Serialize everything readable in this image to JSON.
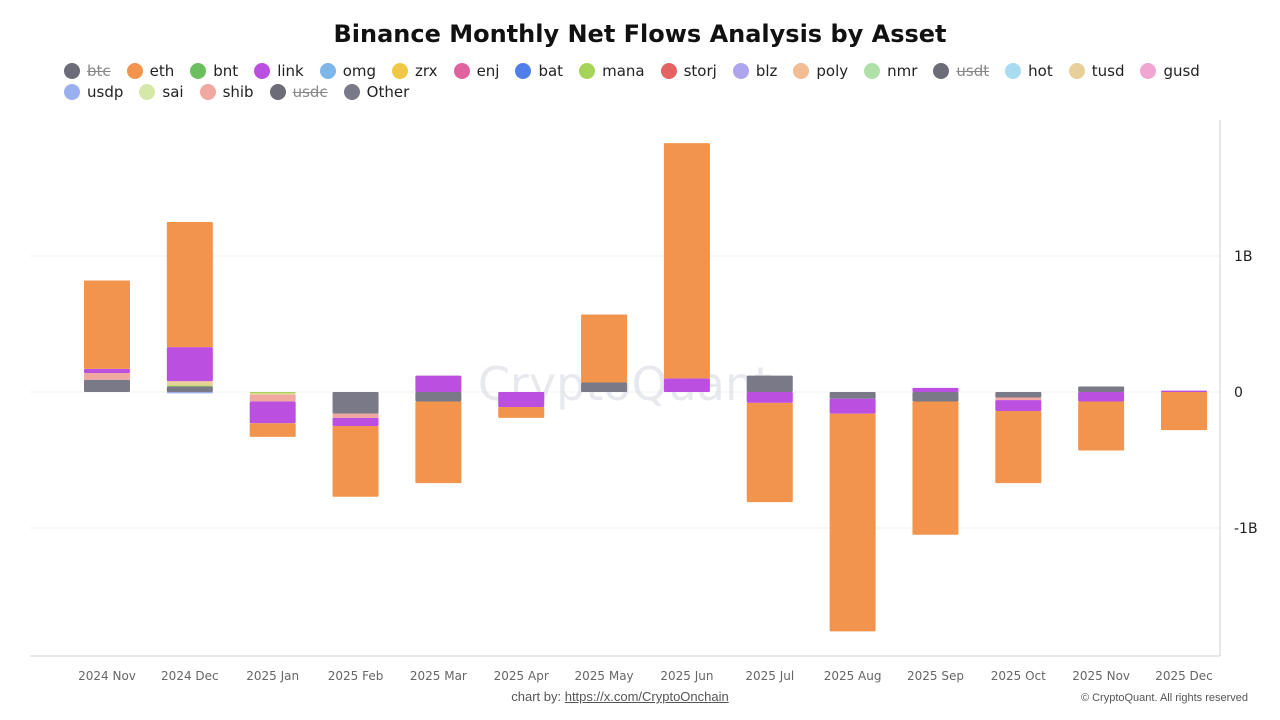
{
  "title": "Binance Monthly Net Flows Analysis by Asset",
  "watermark": "CryptoQuant",
  "footer": {
    "credit_prefix": "chart by: ",
    "credit_link": "https://x.com/CryptoOnchain",
    "copyright": "© CryptoQuant. All rights reserved"
  },
  "legend": [
    [
      {
        "name": "btc",
        "color": "#6c6b78",
        "hidden": true
      },
      {
        "name": "eth",
        "color": "#f2944d",
        "hidden": false
      },
      {
        "name": "bnt",
        "color": "#6bbf5e",
        "hidden": false
      },
      {
        "name": "link",
        "color": "#bb4fe0",
        "hidden": false
      },
      {
        "name": "omg",
        "color": "#7eb6ea",
        "hidden": false
      },
      {
        "name": "zrx",
        "color": "#f0c845",
        "hidden": false
      },
      {
        "name": "enj",
        "color": "#e063a0",
        "hidden": false
      },
      {
        "name": "bat",
        "color": "#4f7ee8",
        "hidden": false
      },
      {
        "name": "mana",
        "color": "#a5d558",
        "hidden": false
      },
      {
        "name": "storj",
        "color": "#e56161",
        "hidden": false
      },
      {
        "name": "blz",
        "color": "#ada6ee",
        "hidden": false
      },
      {
        "name": "poly",
        "color": "#f3bc93",
        "hidden": false
      },
      {
        "name": "nmr",
        "color": "#aee0a8",
        "hidden": false
      },
      {
        "name": "usdt",
        "color": "#6c6b78",
        "hidden": true
      },
      {
        "name": "hot",
        "color": "#a9dcf0",
        "hidden": false
      },
      {
        "name": "tusd",
        "color": "#e9cf98",
        "hidden": false
      },
      {
        "name": "gusd",
        "color": "#f0a6d0",
        "hidden": false
      }
    ],
    [
      {
        "name": "usdp",
        "color": "#9ab0ee",
        "hidden": false
      },
      {
        "name": "sai",
        "color": "#d5e8a7",
        "hidden": false
      },
      {
        "name": "shib",
        "color": "#f1a8a0",
        "hidden": false
      },
      {
        "name": "usdc",
        "color": "#6c6b78",
        "hidden": true
      },
      {
        "name": "Other",
        "color": "#7a7987",
        "hidden": false
      }
    ]
  ],
  "chart_data": {
    "type": "bar",
    "stacked": true,
    "title": "Binance Monthly Net Flows Analysis by Asset",
    "categories": [
      "2024 Nov",
      "2024 Dec",
      "2025 Jan",
      "2025 Feb",
      "2025 Mar",
      "2025 Apr",
      "2025 May",
      "2025 Jun",
      "2025 Jul",
      "2025 Aug",
      "2025 Sep",
      "2025 Oct",
      "2025 Nov",
      "2025 Dec"
    ],
    "y_unit": "USD",
    "ylim": [
      -1950000000,
      2000000000
    ],
    "y_ticks": [
      {
        "value": 1000000000,
        "label": "1B"
      },
      {
        "value": 0,
        "label": "0"
      },
      {
        "value": -1000000000,
        "label": "-1B"
      }
    ],
    "y_axis_position": "right",
    "grid": true,
    "legend_position": "top",
    "series": [
      {
        "name": "eth",
        "color": "#f2944d",
        "values": [
          0.65,
          0.92,
          -0.1,
          -0.52,
          -0.6,
          -0.08,
          0.5,
          1.73,
          -0.73,
          -1.6,
          -0.98,
          -0.53,
          -0.36,
          -0.28
        ]
      },
      {
        "name": "link",
        "color": "#bb4fe0",
        "values": [
          0.03,
          0.25,
          -0.16,
          -0.06,
          0.12,
          -0.11,
          0.0,
          0.1,
          -0.08,
          -0.11,
          0.03,
          -0.08,
          -0.07,
          0.01
        ]
      },
      {
        "name": "shib",
        "color": "#f1a8a0",
        "values": [
          0.05,
          0.0,
          -0.05,
          -0.03,
          0.0,
          0.0,
          0.0,
          0.0,
          0.0,
          0.0,
          0.0,
          -0.02,
          0.0,
          0.0
        ]
      },
      {
        "name": "tusd",
        "color": "#e9cf98",
        "values": [
          0.0,
          0.03,
          -0.01,
          0.0,
          0.0,
          0.0,
          0.0,
          0.0,
          0.0,
          0.0,
          0.0,
          0.0,
          0.0,
          0.0
        ]
      },
      {
        "name": "usdp",
        "color": "#9ab0ee",
        "values": [
          0.0,
          -0.01,
          0.0,
          0.0,
          0.0,
          0.0,
          0.0,
          0.0,
          0.0,
          0.0,
          0.0,
          0.0,
          0.0,
          0.0
        ]
      },
      {
        "name": "mana",
        "color": "#a5d558",
        "values": [
          0.0,
          0.01,
          -0.01,
          0.0,
          0.0,
          0.0,
          0.0,
          0.0,
          0.0,
          0.0,
          0.0,
          0.0,
          0.0,
          0.0
        ]
      },
      {
        "name": "Other",
        "color": "#7a7987",
        "values": [
          0.09,
          0.04,
          0.0,
          -0.16,
          -0.07,
          0.0,
          0.07,
          0.0,
          0.12,
          -0.05,
          -0.07,
          -0.04,
          0.04,
          0.0
        ]
      }
    ],
    "value_scale": 1000000000
  }
}
